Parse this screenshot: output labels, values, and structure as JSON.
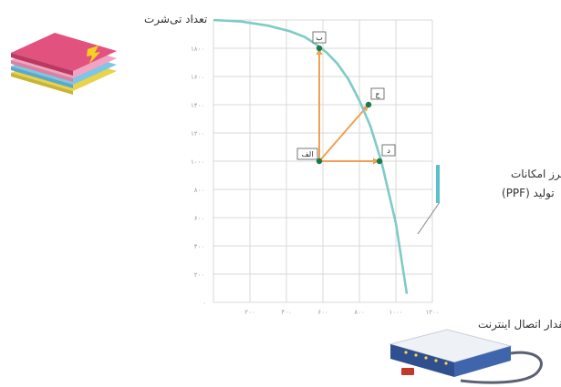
{
  "chart_data": {
    "type": "line",
    "ylabel": "تعداد تی‌شرت",
    "xlabel": "مقدار اتصال اینترنت",
    "xlim": [
      0,
      1200
    ],
    "ylim": [
      0,
      2000
    ],
    "x_ticks": [
      0,
      200,
      400,
      600,
      800,
      1000,
      1200
    ],
    "y_ticks": [
      0,
      200,
      400,
      600,
      800,
      1000,
      1200,
      1400,
      1600,
      1800,
      2000
    ],
    "x_tick_labels": [
      "۲۰۰",
      "۴۰۰",
      "۶۰۰",
      "۸۰۰",
      "۱۰۰۰",
      "۱۲۰۰"
    ],
    "y_tick_labels": [
      "۲۰۰",
      "۴۰۰",
      "۶۰۰",
      "۸۰۰",
      "۱۰۰۰",
      "۱۲۰۰",
      "۱۴۰۰",
      "۱۶۰۰",
      "۱۸۰۰",
      "۲۰۰۰"
    ],
    "origin_label": "۰",
    "grid": true,
    "series": [
      {
        "x": [
          0,
          150,
          300,
          420,
          500,
          560,
          620,
          680,
          740,
          800,
          860,
          920,
          960,
          1000,
          1060
        ],
        "y": [
          2000,
          1990,
          1960,
          1920,
          1880,
          1830,
          1770,
          1690,
          1580,
          1430,
          1250,
          1000,
          780,
          560,
          60
        ]
      }
    ],
    "points": [
      {
        "label": "الف",
        "x": 580,
        "y": 1000
      },
      {
        "label": "ب",
        "x": 580,
        "y": 1800
      },
      {
        "label": "ج",
        "x": 850,
        "y": 1400
      },
      {
        "label": "د",
        "x": 910,
        "y": 1000
      }
    ],
    "arrows": [
      {
        "from": "الف",
        "to": "ب"
      },
      {
        "from": "الف",
        "to": "ج"
      },
      {
        "from": "الف",
        "to": "د"
      }
    ],
    "annotation": {
      "lines": [
        "منحنی مرز امکانات",
        "تولید (PPF)"
      ]
    },
    "colors": {
      "curve": "#7fcbc6",
      "grid": "#d9d9d9",
      "axis_text": "#9a9a9a",
      "arrow": "#f0a050",
      "point": "#1a7a4c",
      "annotation_border": "#5bc0c8"
    }
  },
  "icons": {
    "tshirt_stack": "tshirt-stack-icon",
    "router": "router-icon"
  }
}
